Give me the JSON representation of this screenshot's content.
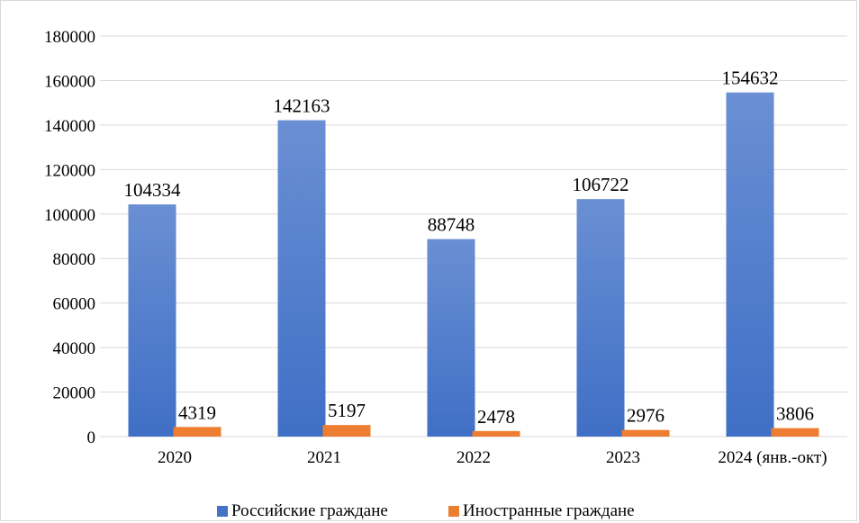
{
  "chart_data": {
    "type": "bar",
    "title": "",
    "xlabel": "",
    "ylabel": "",
    "categories": [
      "2020",
      "2021",
      "2022",
      "2023",
      "2024 (янв.-окт)"
    ],
    "ylim": [
      0,
      180000
    ],
    "yticks": [
      0,
      20000,
      40000,
      60000,
      80000,
      100000,
      120000,
      140000,
      160000,
      180000
    ],
    "grid": true,
    "legend_position": "bottom",
    "series": [
      {
        "name": "Российские граждане",
        "color": "#4472C4",
        "values": [
          104334,
          142163,
          88748,
          106722,
          154632
        ]
      },
      {
        "name": "Иностранные граждане",
        "color": "#ED7D31",
        "values": [
          4319,
          5197,
          2478,
          2976,
          3806
        ]
      }
    ]
  }
}
